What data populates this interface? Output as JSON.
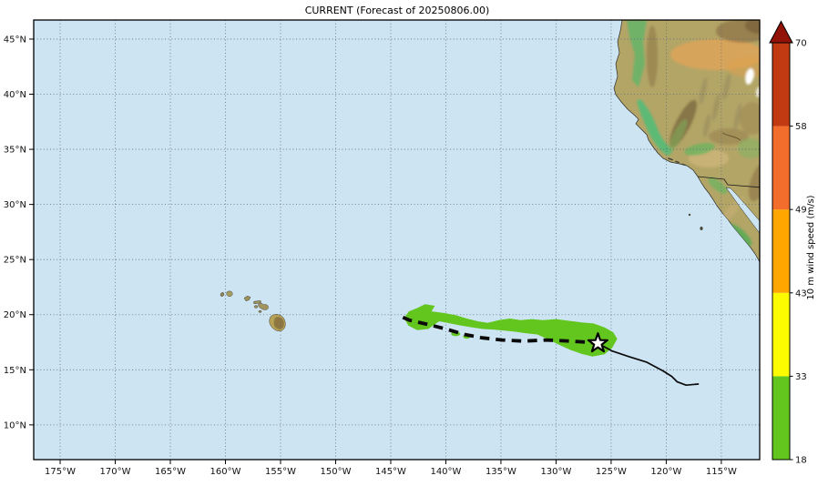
{
  "figure": {
    "background": "#ffffff",
    "ocean_color": "#cde4f2",
    "grid_color": "#5b657e"
  },
  "chart_data": {
    "type": "map-track-forecast",
    "title": "CURRENT (Forecast of 20250806.00)",
    "region": "Northeast Pacific with Hawaiian Islands and western North America",
    "extent": {
      "lon_min": -177.4,
      "lon_max": -111.52,
      "lat_min": 6.85,
      "lat_max": 46.73
    },
    "x_ticks": [
      {
        "value": -175,
        "label": "175°W"
      },
      {
        "value": -170,
        "label": "170°W"
      },
      {
        "value": -165,
        "label": "165°W"
      },
      {
        "value": -160,
        "label": "160°W"
      },
      {
        "value": -155,
        "label": "155°W"
      },
      {
        "value": -150,
        "label": "150°W"
      },
      {
        "value": -145,
        "label": "145°W"
      },
      {
        "value": -140,
        "label": "140°W"
      },
      {
        "value": -135,
        "label": "135°W"
      },
      {
        "value": -130,
        "label": "130°W"
      },
      {
        "value": -125,
        "label": "125°W"
      },
      {
        "value": -120,
        "label": "120°W"
      },
      {
        "value": -115,
        "label": "115°W"
      }
    ],
    "y_ticks": [
      {
        "value": 45,
        "label": "45°N"
      },
      {
        "value": 40,
        "label": "40°N"
      },
      {
        "value": 35,
        "label": "35°N"
      },
      {
        "value": 30,
        "label": "30°N"
      },
      {
        "value": 25,
        "label": "25°N"
      },
      {
        "value": 20,
        "label": "20°N"
      },
      {
        "value": 15,
        "label": "15°N"
      },
      {
        "value": 10,
        "label": "10°N"
      }
    ],
    "colorbar": {
      "label": "10 m wind speed (m/s)",
      "levels": [
        18,
        33,
        43,
        49,
        58,
        70
      ],
      "colors": [
        "#62c61e",
        "#fdfb00",
        "#ffa600",
        "#f26c2b",
        "#c23a12"
      ],
      "extend_over_color": "#921207"
    },
    "track_history_solid": [
      [
        -126.2,
        17.4
      ],
      [
        -124.9,
        16.7
      ],
      [
        -123.4,
        16.2
      ],
      [
        -121.8,
        15.7
      ],
      [
        -120.3,
        14.9
      ],
      [
        -119.5,
        14.4
      ],
      [
        -119.0,
        13.9
      ],
      [
        -118.2,
        13.6
      ],
      [
        -117.1,
        13.7
      ]
    ],
    "track_forecast_dashed": [
      [
        -143.9,
        19.75
      ],
      [
        -143.3,
        19.5
      ],
      [
        -141.6,
        19.1
      ],
      [
        -140.0,
        18.7
      ],
      [
        -138.3,
        18.2
      ],
      [
        -136.7,
        17.9
      ],
      [
        -134.9,
        17.7
      ],
      [
        -133.0,
        17.6
      ],
      [
        -130.9,
        17.7
      ],
      [
        -128.8,
        17.6
      ],
      [
        -127.1,
        17.5
      ],
      [
        -126.2,
        17.4
      ]
    ],
    "current_position": {
      "lon": -126.2,
      "lat": 17.4,
      "marker": "star"
    },
    "wind_swath_ge18ms": {
      "color": "#62c61e",
      "outline": [
        [
          -143.8,
          19.7
        ],
        [
          -143.35,
          20.3
        ],
        [
          -142.6,
          20.6
        ],
        [
          -141.9,
          20.95
        ],
        [
          -141.0,
          20.8
        ],
        [
          -141.3,
          20.3
        ],
        [
          -140.2,
          20.15
        ],
        [
          -139.1,
          19.95
        ],
        [
          -138.1,
          19.65
        ],
        [
          -137.1,
          19.4
        ],
        [
          -136.2,
          19.25
        ],
        [
          -135.2,
          19.5
        ],
        [
          -134.2,
          19.65
        ],
        [
          -133.2,
          19.5
        ],
        [
          -132.2,
          19.6
        ],
        [
          -131.2,
          19.5
        ],
        [
          -130.0,
          19.6
        ],
        [
          -128.9,
          19.45
        ],
        [
          -127.7,
          19.3
        ],
        [
          -126.6,
          19.2
        ],
        [
          -125.6,
          18.85
        ],
        [
          -124.8,
          18.4
        ],
        [
          -124.45,
          17.8
        ],
        [
          -124.9,
          17.0
        ],
        [
          -125.6,
          16.4
        ],
        [
          -126.7,
          16.2
        ],
        [
          -127.7,
          16.45
        ],
        [
          -128.7,
          16.8
        ],
        [
          -129.7,
          17.25
        ],
        [
          -130.7,
          17.75
        ],
        [
          -131.7,
          18.2
        ],
        [
          -132.7,
          18.3
        ],
        [
          -133.7,
          18.45
        ],
        [
          -134.7,
          18.55
        ],
        [
          -135.7,
          18.65
        ],
        [
          -136.6,
          18.7
        ],
        [
          -137.6,
          18.85
        ],
        [
          -138.6,
          19.0
        ],
        [
          -139.6,
          19.2
        ],
        [
          -140.6,
          19.4
        ],
        [
          -141.6,
          18.7
        ],
        [
          -142.6,
          18.6
        ],
        [
          -143.4,
          19.0
        ]
      ],
      "fragments": [
        {
          "lon": -139.1,
          "lat": 18.25,
          "rlon": 0.41,
          "rlat": 0.21
        },
        {
          "lon": -138.1,
          "lat": 18.0,
          "rlon": 0.33,
          "rlat": 0.17
        }
      ]
    }
  }
}
